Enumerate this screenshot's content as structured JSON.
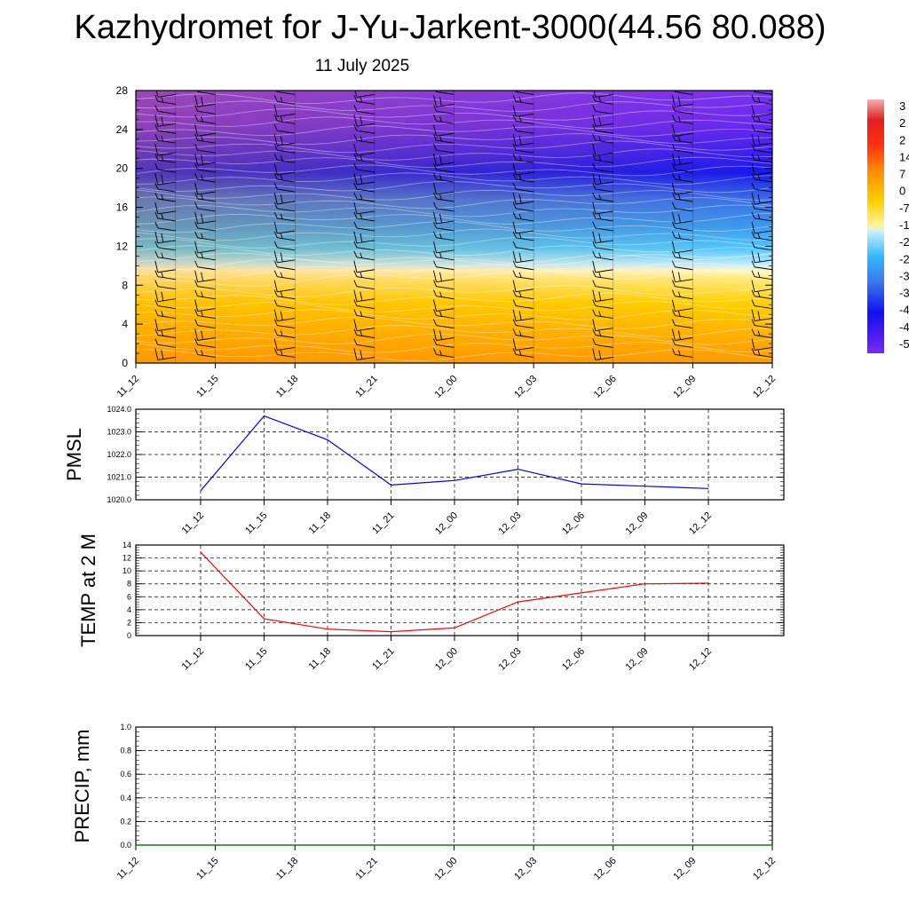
{
  "title": "Kazhydromet for J-Yu-Jarkent-3000(44.56 80.088)",
  "subtitle": "11 July 2025",
  "chart_data": [
    {
      "type": "heatmap",
      "description": "Time-height cross section of temperature with wind barbs",
      "x_ticks": [
        "11_12",
        "11_15",
        "11_18",
        "11_21",
        "12_00",
        "12_03",
        "12_06",
        "12_09",
        "12_12"
      ],
      "y_ticks": [
        "0",
        "4",
        "8",
        "12",
        "16",
        "20",
        "24",
        "28"
      ],
      "ylim": [
        0,
        28
      ],
      "colorbar_labels": [
        "3",
        "2",
        "2",
        "14",
        "7",
        "0",
        "-7",
        "-1",
        "-2",
        "-2",
        "-3",
        "-3",
        "-4",
        "-4",
        "-5"
      ],
      "colors": [
        "#f08c8c",
        "#e01818",
        "#ff4010",
        "#ff9000",
        "#ffd000",
        "#fff5a0",
        "#a8e8ff",
        "#30b0ff",
        "#2860e8",
        "#1010f0",
        "#7a28f5"
      ]
    },
    {
      "type": "line",
      "ylabel": "PMSL",
      "x": [
        "11_12",
        "11_15",
        "11_18",
        "11_21",
        "12_00",
        "12_03",
        "12_06",
        "12_09",
        "12_12"
      ],
      "series": [
        {
          "values": [
            1020.4,
            1023.7,
            1022.65,
            1020.65,
            1020.85,
            1021.35,
            1020.7,
            1020.6,
            1020.5
          ],
          "color": "#0000ff"
        }
      ],
      "ylim": [
        1020.0,
        1024.0
      ],
      "y_ticks": [
        "1020.0",
        "1021.0",
        "1022.0",
        "1023.0",
        "1024.0"
      ],
      "grid": true
    },
    {
      "type": "line",
      "ylabel": "TEMP at 2 M",
      "x": [
        "11_12",
        "11_15",
        "11_18",
        "11_21",
        "12_00",
        "12_03",
        "12_06",
        "12_09",
        "12_12"
      ],
      "series": [
        {
          "values": [
            12.9,
            2.6,
            1.0,
            0.6,
            1.2,
            5.2,
            6.6,
            8.0,
            8.1
          ],
          "color": "#ff0000"
        }
      ],
      "ylim": [
        0,
        14
      ],
      "y_ticks": [
        "0",
        "2",
        "4",
        "6",
        "8",
        "10",
        "12",
        "14"
      ],
      "grid": true
    },
    {
      "type": "line",
      "ylabel": "PRECIP, mm",
      "x": [
        "11_12",
        "11_15",
        "11_18",
        "11_21",
        "12_00",
        "12_03",
        "12_06",
        "12_09",
        "12_12"
      ],
      "series": [
        {
          "values": [
            0,
            0,
            0,
            0,
            0,
            0,
            0,
            0,
            0
          ],
          "color": "#008000"
        }
      ],
      "ylim": [
        0,
        1.0
      ],
      "y_ticks": [
        "0.0",
        "0.2",
        "0.4",
        "0.6",
        "0.8",
        "1.0"
      ],
      "grid": true
    }
  ]
}
